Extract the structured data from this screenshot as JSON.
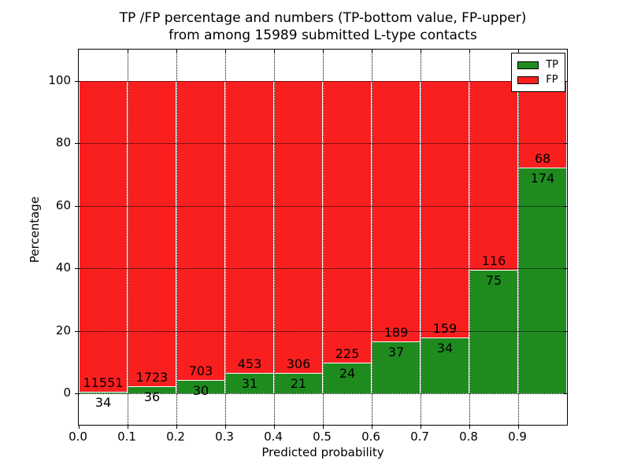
{
  "title": {
    "line1": "TP /FP percentage and numbers (TP-bottom value, FP-upper)",
    "line2": "from among 15989 submitted L-type contacts"
  },
  "chart_data": {
    "type": "bar",
    "stacked": true,
    "normalized_each_bin_to_percent": true,
    "title": "TP /FP percentage and numbers (TP-bottom value, FP-upper) from among 15989 submitted L-type contacts",
    "total_submitted": 15989,
    "xlabel": "Predicted probability",
    "ylabel": "Percentage",
    "categories": [
      "0.0-0.1",
      "0.1-0.2",
      "0.2-0.3",
      "0.3-0.4",
      "0.4-0.5",
      "0.5-0.6",
      "0.6-0.7",
      "0.7-0.8",
      "0.8-0.9",
      "0.9-1.0"
    ],
    "series": [
      {
        "name": "TP",
        "color": "#1f8b1f",
        "values": [
          34,
          36,
          30,
          31,
          21,
          24,
          37,
          34,
          75,
          174
        ]
      },
      {
        "name": "FP",
        "color": "#fa1f1f",
        "values": [
          11551,
          1723,
          703,
          453,
          306,
          225,
          189,
          159,
          116,
          68
        ]
      }
    ],
    "tp_percent_heights": [
      0.3,
      2.0,
      4.1,
      6.4,
      6.4,
      9.6,
      16.4,
      17.6,
      39.3,
      71.9
    ],
    "x_tick_labels": [
      "0.0",
      "0.1",
      "0.2",
      "0.3",
      "0.4",
      "0.5",
      "0.6",
      "0.7",
      "0.8",
      "0.9"
    ],
    "y_tick_values": [
      0,
      20,
      40,
      60,
      80,
      100
    ],
    "xlim": [
      0.0,
      1.0
    ],
    "ylim": [
      -10,
      110
    ],
    "grid": "dotted-black-both-axes",
    "legend": {
      "position": "upper-right",
      "entries": [
        "TP",
        "FP"
      ]
    }
  }
}
